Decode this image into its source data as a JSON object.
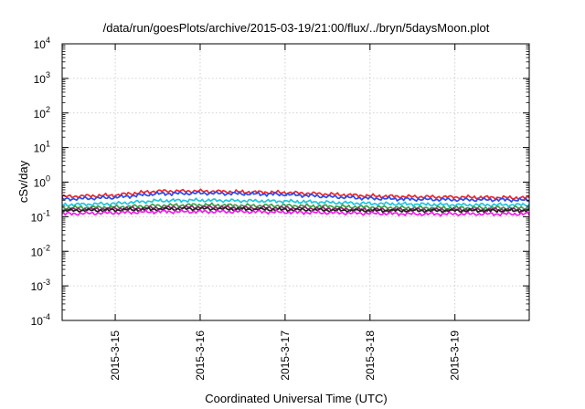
{
  "chart_data": {
    "type": "line",
    "title": "/data/run/goesPlots/archive/2015-03-19/21:00/flux/../bryn/5daysMoon.plot",
    "xlabel": "Coordinated Universal Time (UTC)",
    "ylabel": "cSv/day",
    "y_scale": "log",
    "ylim": [
      0.0001,
      10000
    ],
    "y_ticks": [
      {
        "base": "10",
        "exp": "-4",
        "value": 0.0001
      },
      {
        "base": "10",
        "exp": "-3",
        "value": 0.001
      },
      {
        "base": "10",
        "exp": "-2",
        "value": 0.01
      },
      {
        "base": "10",
        "exp": "-1",
        "value": 0.1
      },
      {
        "base": "10",
        "exp": "0",
        "value": 1
      },
      {
        "base": "10",
        "exp": "1",
        "value": 10
      },
      {
        "base": "10",
        "exp": "2",
        "value": 100
      },
      {
        "base": "10",
        "exp": "3",
        "value": 1000
      },
      {
        "base": "10",
        "exp": "4",
        "value": 10000
      }
    ],
    "xlim": [
      "2015-03-14 09:00",
      "2015-03-19 21:00"
    ],
    "x_ticks": [
      "2015-3-15",
      "2015-3-16",
      "2015-3-17",
      "2015-3-18",
      "2015-3-19"
    ],
    "grid": true,
    "x": [
      "2015-03-14 09:00",
      "2015-03-15 00:00",
      "2015-03-15 12:00",
      "2015-03-16 00:00",
      "2015-03-16 12:00",
      "2015-03-17 00:00",
      "2015-03-17 12:00",
      "2015-03-18 00:00",
      "2015-03-18 12:00",
      "2015-03-19 00:00",
      "2015-03-19 12:00",
      "2015-03-19 21:00"
    ],
    "series": [
      {
        "color": "#e8282e",
        "values": [
          0.38,
          0.42,
          0.55,
          0.55,
          0.52,
          0.5,
          0.45,
          0.4,
          0.38,
          0.37,
          0.36,
          0.35
        ]
      },
      {
        "color": "#2a4cf0",
        "values": [
          0.32,
          0.36,
          0.46,
          0.48,
          0.46,
          0.44,
          0.38,
          0.34,
          0.32,
          0.31,
          0.31,
          0.3
        ]
      },
      {
        "color": "#1fc6dd",
        "values": [
          0.22,
          0.24,
          0.29,
          0.3,
          0.29,
          0.28,
          0.26,
          0.24,
          0.23,
          0.22,
          0.22,
          0.22
        ]
      },
      {
        "color": "#3da24a",
        "values": [
          0.18,
          0.19,
          0.21,
          0.22,
          0.21,
          0.21,
          0.2,
          0.19,
          0.18,
          0.18,
          0.18,
          0.18
        ]
      },
      {
        "color": "#8e2b6e",
        "values": [
          0.16,
          0.17,
          0.18,
          0.19,
          0.18,
          0.18,
          0.17,
          0.16,
          0.16,
          0.16,
          0.16,
          0.16
        ]
      },
      {
        "color": "#222222",
        "values": [
          0.15,
          0.155,
          0.165,
          0.17,
          0.165,
          0.16,
          0.155,
          0.15,
          0.15,
          0.15,
          0.15,
          0.15
        ]
      },
      {
        "color": "#f01ee8",
        "values": [
          0.12,
          0.13,
          0.14,
          0.14,
          0.14,
          0.135,
          0.13,
          0.125,
          0.12,
          0.12,
          0.12,
          0.12
        ]
      }
    ]
  }
}
